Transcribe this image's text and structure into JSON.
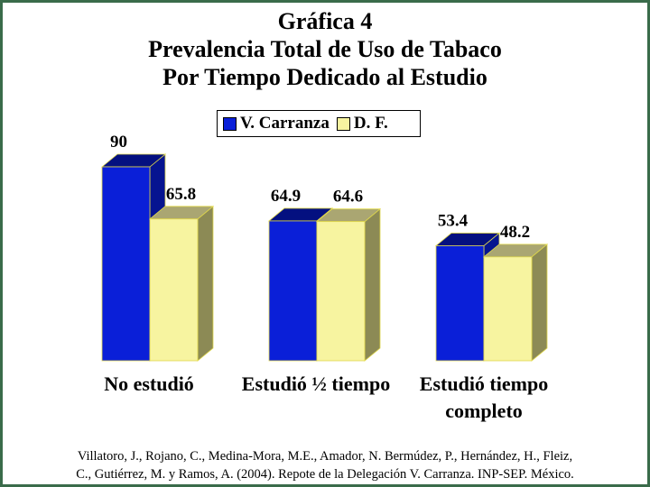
{
  "chart_data": {
    "type": "bar",
    "title": "Gráfica 4",
    "subtitle_lines": [
      "Prevalencia Total de Uso de Tabaco",
      "Por Tiempo Dedicado al Estudio"
    ],
    "categories": [
      [
        "No estudió"
      ],
      [
        "Estudió ½ tiempo"
      ],
      [
        "Estudió tiempo",
        "completo"
      ]
    ],
    "series": [
      {
        "name": "V. Carranza",
        "values": [
          90,
          64.9,
          53.4
        ],
        "labels": [
          "90",
          "64.9",
          "53.4"
        ],
        "color": "#0a1fd8",
        "top_color": "#041080",
        "side_color": "#061490"
      },
      {
        "name": "D. F.",
        "values": [
          65.8,
          64.6,
          48.2
        ],
        "labels": [
          "65.8",
          "64.6",
          "48.2"
        ],
        "color": "#f7f4a0",
        "top_color": "#aaa672",
        "side_color": "#8c8a55"
      }
    ],
    "ylim": [
      0,
      100
    ],
    "grid": false,
    "legend": "top-center",
    "xlabel": "",
    "ylabel": ""
  },
  "citation_lines": [
    "Villatoro, J., Rojano, C., Medina-Mora, M.E., Amador, N. Bermúdez, P., Hernández, H., Fleiz,",
    "C., Gutiérrez, M. y Ramos, A. (2004). Repote de la Delegación V. Carranza. INP-SEP. México."
  ]
}
